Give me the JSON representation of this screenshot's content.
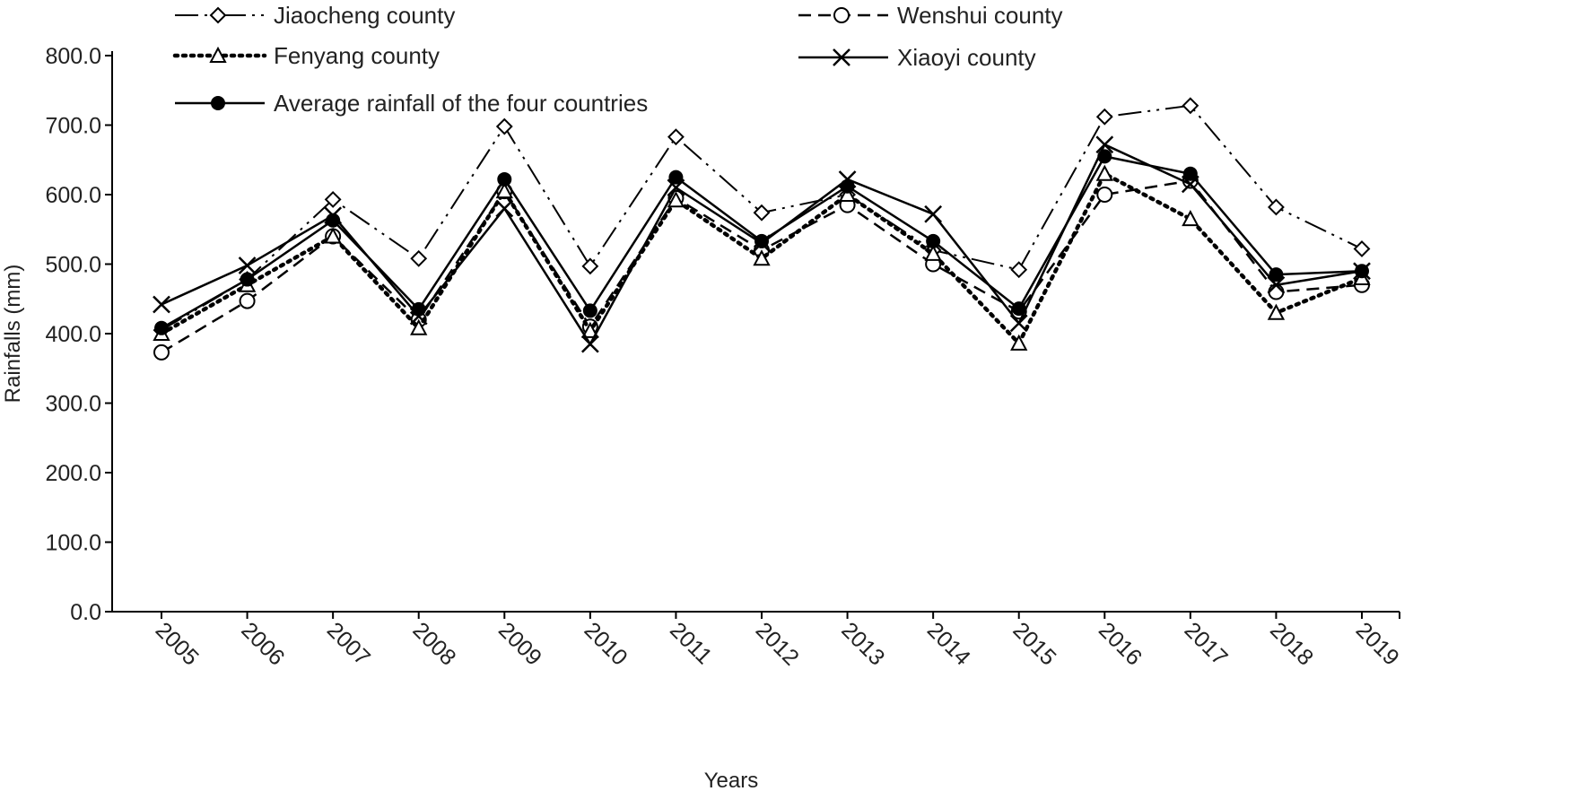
{
  "chart_data": {
    "type": "line",
    "title": "",
    "xlabel": "Years",
    "ylabel": "Rainfalls (mm)",
    "ylim": [
      0,
      800
    ],
    "yticks": [
      "0.0",
      "100.0",
      "200.0",
      "300.0",
      "400.0",
      "500.0",
      "600.0",
      "700.0",
      "800.0"
    ],
    "x": [
      "2005",
      "2006",
      "2007",
      "2008",
      "2009",
      "2010",
      "2011",
      "2012",
      "2013",
      "2014",
      "2015",
      "2016",
      "2017",
      "2018",
      "2019"
    ],
    "grid": false,
    "legend_position": "top",
    "series": [
      {
        "name": "Jiaocheng county",
        "marker": "diamond-open",
        "style": "dash-dot-dot",
        "values": [
          405,
          478,
          593,
          508,
          698,
          497,
          683,
          574,
          600,
          520,
          492,
          712,
          728,
          582,
          522
        ]
      },
      {
        "name": "Wenshui county",
        "marker": "circle-open",
        "style": "dashed",
        "values": [
          373,
          447,
          540,
          420,
          605,
          410,
          595,
          520,
          585,
          500,
          432,
          600,
          620,
          460,
          470
        ]
      },
      {
        "name": "Fenyang county",
        "marker": "triangle-open",
        "style": "dotted",
        "values": [
          400,
          470,
          540,
          408,
          605,
          404,
          592,
          508,
          600,
          515,
          386,
          630,
          565,
          430,
          480
        ]
      },
      {
        "name": "Xiaoyi county",
        "marker": "x",
        "style": "solid",
        "values": [
          442,
          498,
          570,
          425,
          580,
          385,
          610,
          530,
          622,
          572,
          415,
          672,
          615,
          470,
          490
        ]
      },
      {
        "name": "Average rainfall of the four countries",
        "marker": "circle-filled",
        "style": "solid",
        "values": [
          408,
          478,
          563,
          435,
          622,
          433,
          625,
          533,
          612,
          533,
          436,
          655,
          630,
          485,
          490
        ]
      }
    ]
  }
}
